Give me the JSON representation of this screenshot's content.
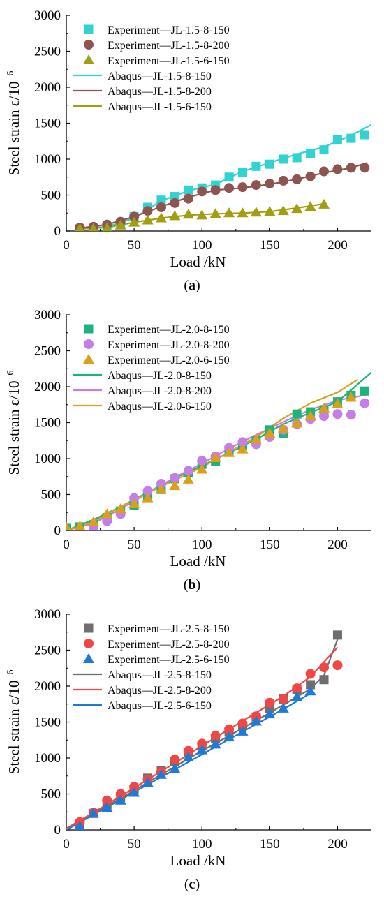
{
  "chart_data": [
    {
      "type": "scatter",
      "panel_label": "a",
      "xlabel": "Load  /kN",
      "ylabel": "Steel strain  ε/10",
      "ylabel_exponent": "−6",
      "xlim": [
        0,
        225
      ],
      "ylim": [
        0,
        3000
      ],
      "xticks": [
        0,
        50,
        100,
        150,
        200
      ],
      "yticks": [
        0,
        500,
        1000,
        1500,
        2000,
        2500,
        3000
      ],
      "legend_position": "top-left",
      "series": [
        {
          "name": "Experiment—JL-1.5-8-150",
          "kind": "marker",
          "marker": "square",
          "color": "#32d2d2",
          "x": [
            10,
            20,
            30,
            40,
            50,
            60,
            70,
            80,
            90,
            100,
            110,
            120,
            130,
            140,
            150,
            160,
            170,
            180,
            190,
            200,
            210,
            220
          ],
          "y": [
            30,
            40,
            50,
            100,
            200,
            330,
            430,
            480,
            570,
            600,
            640,
            750,
            820,
            900,
            930,
            1000,
            1020,
            1080,
            1130,
            1270,
            1290,
            1340
          ]
        },
        {
          "name": "Experiment—JL-1.5-8-200",
          "kind": "marker",
          "marker": "circle",
          "color": "#8e5550",
          "x": [
            10,
            20,
            30,
            40,
            50,
            60,
            70,
            80,
            90,
            100,
            110,
            120,
            130,
            140,
            150,
            160,
            170,
            180,
            190,
            200,
            210,
            220
          ],
          "y": [
            50,
            60,
            90,
            130,
            200,
            280,
            330,
            390,
            450,
            550,
            570,
            600,
            610,
            640,
            660,
            700,
            720,
            760,
            830,
            860,
            880,
            880
          ]
        },
        {
          "name": "Experiment—JL-1.5-6-150",
          "kind": "marker",
          "marker": "triangle",
          "color": "#a19e10",
          "x": [
            10,
            20,
            30,
            40,
            50,
            60,
            70,
            80,
            90,
            100,
            110,
            120,
            130,
            140,
            150,
            160,
            170,
            180,
            190
          ],
          "y": [
            30,
            30,
            40,
            80,
            120,
            150,
            180,
            210,
            230,
            220,
            240,
            250,
            250,
            260,
            270,
            280,
            310,
            340,
            370
          ]
        },
        {
          "name": "Abaqus—JL-1.5-8-150",
          "kind": "line",
          "color": "#32d2d2",
          "x": [
            10,
            30,
            50,
            70,
            90,
            110,
            130,
            150,
            170,
            190,
            210,
            225
          ],
          "y": [
            30,
            60,
            180,
            420,
            560,
            650,
            830,
            950,
            1070,
            1170,
            1330,
            1480
          ]
        },
        {
          "name": "Abaqus—JL-1.5-8-200",
          "kind": "line",
          "color": "#8e5550",
          "x": [
            10,
            30,
            50,
            70,
            90,
            110,
            130,
            150,
            170,
            190,
            210,
            222
          ],
          "y": [
            40,
            90,
            200,
            340,
            470,
            570,
            600,
            650,
            720,
            810,
            880,
            950
          ]
        },
        {
          "name": "Abaqus—JL-1.5-6-150",
          "kind": "line",
          "color": "#a19e10",
          "x": [
            10,
            30,
            50,
            70,
            90,
            110,
            130,
            150,
            170,
            190
          ],
          "y": [
            30,
            50,
            120,
            180,
            220,
            240,
            250,
            270,
            320,
            380
          ]
        }
      ]
    },
    {
      "type": "scatter",
      "panel_label": "b",
      "xlabel": "Load  /kN",
      "ylabel": "Steel strain  ε/10",
      "ylabel_exponent": "−6",
      "xlim": [
        0,
        225
      ],
      "ylim": [
        0,
        3000
      ],
      "xticks": [
        0,
        50,
        100,
        150,
        200
      ],
      "yticks": [
        0,
        500,
        1000,
        1500,
        2000,
        2500,
        3000
      ],
      "legend_position": "top-left",
      "series": [
        {
          "name": "Experiment—JL-2.0-8-150",
          "kind": "marker",
          "marker": "square",
          "color": "#1db37a",
          "x": [
            0,
            10,
            20,
            30,
            40,
            50,
            60,
            70,
            80,
            90,
            100,
            110,
            120,
            130,
            140,
            150,
            160,
            170,
            180,
            190,
            200,
            210,
            220
          ],
          "y": [
            30,
            50,
            80,
            180,
            270,
            350,
            470,
            570,
            720,
            800,
            920,
            960,
            1100,
            1180,
            1250,
            1400,
            1350,
            1620,
            1650,
            1680,
            1790,
            1880,
            1940
          ]
        },
        {
          "name": "Experiment—JL-2.0-8-200",
          "kind": "marker",
          "marker": "circle",
          "color": "#c57ee8",
          "x": [
            20,
            30,
            40,
            50,
            60,
            70,
            80,
            90,
            100,
            110,
            120,
            130,
            140,
            150,
            160,
            170,
            180,
            190,
            200,
            210,
            220
          ],
          "y": [
            50,
            130,
            230,
            450,
            550,
            650,
            730,
            830,
            970,
            1030,
            1150,
            1230,
            1200,
            1300,
            1400,
            1480,
            1550,
            1590,
            1620,
            1610,
            1770
          ]
        },
        {
          "name": "Experiment—JL-2.0-6-150",
          "kind": "marker",
          "marker": "triangle",
          "color": "#dba019",
          "x": [
            0,
            10,
            20,
            30,
            40,
            50,
            60,
            70,
            80,
            90,
            100,
            110,
            120,
            130,
            140,
            150,
            160,
            170,
            180,
            190,
            200,
            210
          ],
          "y": [
            40,
            60,
            120,
            230,
            300,
            370,
            450,
            570,
            620,
            710,
            850,
            1010,
            1080,
            1130,
            1270,
            1350,
            1420,
            1490,
            1590,
            1700,
            1760,
            1850
          ]
        },
        {
          "name": "Abaqus—JL-2.0-8-150",
          "kind": "line",
          "color": "#1db37a",
          "x": [
            0,
            20,
            40,
            60,
            80,
            100,
            120,
            140,
            160,
            180,
            200,
            225
          ],
          "y": [
            0,
            150,
            330,
            530,
            730,
            900,
            1080,
            1270,
            1480,
            1640,
            1790,
            2200
          ]
        },
        {
          "name": "Abaqus—JL-2.0-8-200",
          "kind": "line",
          "color": "#c57ee8",
          "x": [
            0,
            20,
            40,
            60,
            80,
            100,
            120,
            140,
            160,
            180,
            200,
            222
          ],
          "y": [
            0,
            100,
            300,
            520,
            740,
            930,
            1140,
            1330,
            1510,
            1680,
            1810,
            1890
          ]
        },
        {
          "name": "Abaqus—JL-2.0-6-150",
          "kind": "line",
          "color": "#dba019",
          "x": [
            0,
            20,
            40,
            60,
            80,
            100,
            120,
            140,
            160,
            180,
            200,
            215
          ],
          "y": [
            0,
            120,
            330,
            520,
            700,
            880,
            1090,
            1300,
            1560,
            1770,
            1920,
            2100
          ]
        }
      ]
    },
    {
      "type": "scatter",
      "panel_label": "c",
      "xlabel": "Load  /kN",
      "ylabel": "Steel strain  ε/10",
      "ylabel_exponent": "−6",
      "xlim": [
        0,
        225
      ],
      "ylim": [
        0,
        3000
      ],
      "xticks": [
        0,
        50,
        100,
        150,
        200
      ],
      "yticks": [
        0,
        500,
        1000,
        1500,
        2000,
        2500,
        3000
      ],
      "legend_position": "top-left",
      "series": [
        {
          "name": "Experiment—JL-2.5-8-150",
          "kind": "marker",
          "marker": "square",
          "color": "#6e6e6e",
          "x": [
            10,
            20,
            30,
            40,
            50,
            60,
            70,
            80,
            90,
            100,
            110,
            120,
            130,
            140,
            150,
            160,
            170,
            180,
            190,
            200
          ],
          "y": [
            80,
            230,
            350,
            450,
            560,
            720,
            830,
            950,
            1080,
            1170,
            1270,
            1360,
            1450,
            1570,
            1690,
            1820,
            1950,
            2020,
            2090,
            2710
          ]
        },
        {
          "name": "Experiment—JL-2.5-8-200",
          "kind": "marker",
          "marker": "circle",
          "color": "#f04646",
          "x": [
            10,
            20,
            30,
            40,
            50,
            60,
            70,
            80,
            90,
            100,
            110,
            120,
            130,
            140,
            150,
            160,
            170,
            180,
            190,
            200
          ],
          "y": [
            110,
            240,
            410,
            500,
            600,
            700,
            810,
            980,
            1100,
            1200,
            1310,
            1400,
            1480,
            1580,
            1770,
            1820,
            1970,
            2170,
            2260,
            2290
          ]
        },
        {
          "name": "Experiment—JL-2.5-6-150",
          "kind": "marker",
          "marker": "triangle",
          "color": "#1f7ad6",
          "x": [
            10,
            20,
            30,
            40,
            50,
            60,
            70,
            80,
            90,
            100,
            110,
            120,
            130,
            140,
            150,
            160,
            170,
            180
          ],
          "y": [
            50,
            230,
            310,
            410,
            520,
            660,
            770,
            850,
            1010,
            1110,
            1190,
            1290,
            1370,
            1510,
            1610,
            1690,
            1850,
            1930
          ]
        },
        {
          "name": "Abaqus—JL-2.5-8-150",
          "kind": "line",
          "color": "#6e6e6e",
          "x": [
            0,
            20,
            40,
            60,
            80,
            100,
            120,
            140,
            160,
            180,
            190,
            200
          ],
          "y": [
            0,
            220,
            440,
            660,
            880,
            1100,
            1310,
            1520,
            1740,
            1960,
            2150,
            2650
          ]
        },
        {
          "name": "Abaqus—JL-2.5-8-200",
          "kind": "line",
          "color": "#f04646",
          "x": [
            0,
            20,
            40,
            60,
            80,
            100,
            120,
            140,
            160,
            180,
            200
          ],
          "y": [
            20,
            240,
            470,
            700,
            930,
            1170,
            1400,
            1630,
            1860,
            2130,
            2540
          ]
        },
        {
          "name": "Abaqus—JL-2.5-6-150",
          "kind": "line",
          "color": "#1f7ad6",
          "x": [
            0,
            20,
            40,
            60,
            80,
            100,
            120,
            140,
            160,
            180
          ],
          "y": [
            0,
            210,
            420,
            630,
            840,
            1050,
            1260,
            1470,
            1680,
            1900
          ]
        }
      ]
    }
  ]
}
